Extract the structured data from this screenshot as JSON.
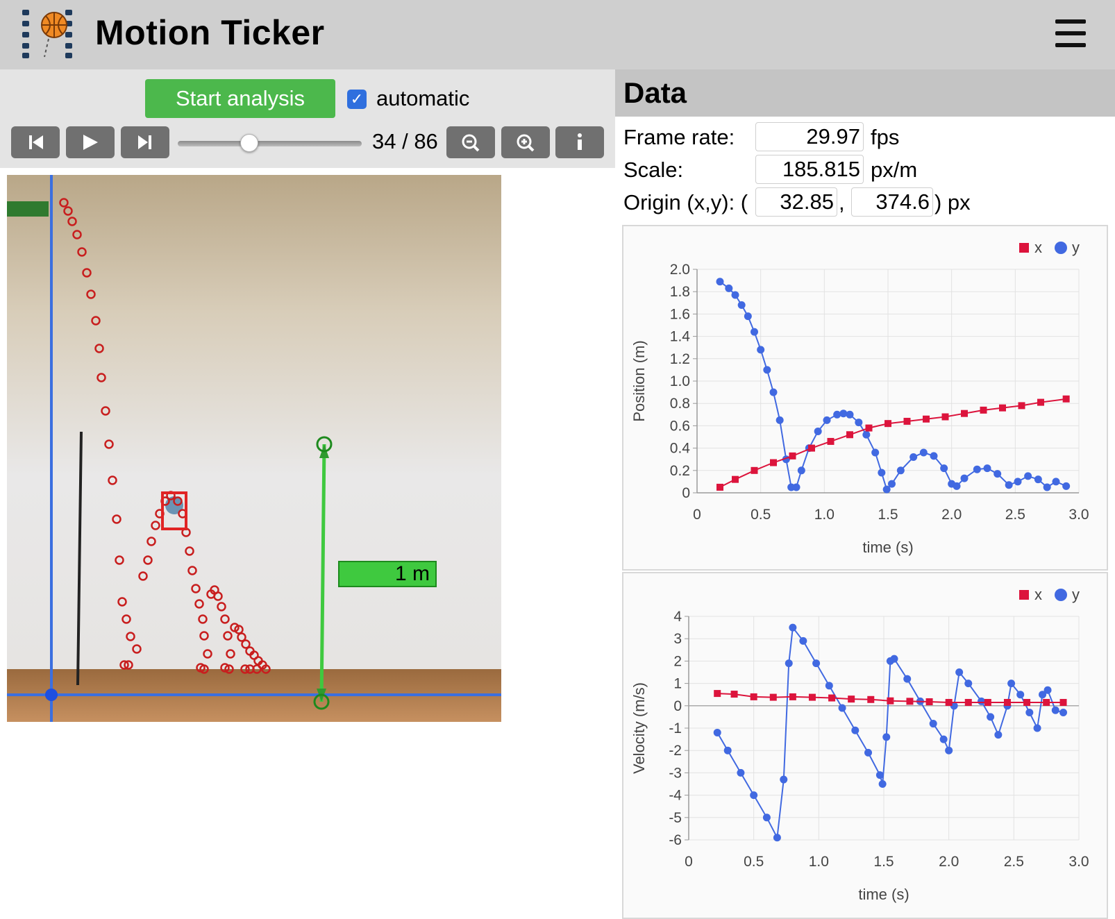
{
  "header": {
    "title": "Motion Ticker",
    "logo_icon": "basketball-filmstrip-icon",
    "menu_icon": "hamburger-menu-icon"
  },
  "controls": {
    "start_label": "Start analysis",
    "auto_label": "automatic",
    "auto_checked": true,
    "frame_current": 34,
    "frame_total": 86,
    "frame_text": "34 / 86",
    "slider_fraction": 0.39,
    "buttons": [
      "skip-back-icon",
      "play-icon",
      "skip-forward-icon",
      "zoom-out-icon",
      "zoom-in-icon",
      "info-icon"
    ]
  },
  "video": {
    "scale_label": "1 m"
  },
  "data": {
    "title": "Data",
    "frame_rate_label": "Frame rate:",
    "frame_rate": "29.97",
    "frame_rate_unit": "fps",
    "scale_label": "Scale:",
    "scale": "185.815",
    "scale_unit": "px/m",
    "origin_label": "Origin (x,y): (",
    "origin_x": "32.85",
    "origin_comma": ",",
    "origin_y": "374.6",
    "origin_unit": ") px"
  },
  "colors": {
    "x_series": "#dc143c",
    "y_series": "#4169e1",
    "start_button": "#4cb84c",
    "scale_bar": "#3fc93f"
  },
  "chart_data": [
    {
      "type": "scatter",
      "xlabel": "time (s)",
      "ylabel": "Position (m)",
      "xlim": [
        0,
        3.0
      ],
      "ylim": [
        0,
        2.0
      ],
      "xticks": [
        "0",
        "0.5",
        "1.0",
        "1.5",
        "2.0",
        "2.5",
        "3.0"
      ],
      "yticks": [
        "0",
        "0.2",
        "0.4",
        "0.6",
        "0.8",
        "1.0",
        "1.2",
        "1.4",
        "1.6",
        "1.8",
        "2.0"
      ],
      "legend": [
        "x",
        "y"
      ],
      "legend_position": "top-right",
      "grid": true,
      "series": [
        {
          "name": "x",
          "marker": "square",
          "points": [
            [
              0.18,
              0.05
            ],
            [
              0.3,
              0.12
            ],
            [
              0.45,
              0.2
            ],
            [
              0.6,
              0.27
            ],
            [
              0.75,
              0.33
            ],
            [
              0.9,
              0.4
            ],
            [
              1.05,
              0.46
            ],
            [
              1.2,
              0.52
            ],
            [
              1.35,
              0.58
            ],
            [
              1.5,
              0.62
            ],
            [
              1.65,
              0.64
            ],
            [
              1.8,
              0.66
            ],
            [
              1.95,
              0.68
            ],
            [
              2.1,
              0.71
            ],
            [
              2.25,
              0.74
            ],
            [
              2.4,
              0.76
            ],
            [
              2.55,
              0.78
            ],
            [
              2.7,
              0.81
            ],
            [
              2.9,
              0.84
            ]
          ]
        },
        {
          "name": "y",
          "marker": "circle",
          "points": [
            [
              0.18,
              1.89
            ],
            [
              0.25,
              1.83
            ],
            [
              0.3,
              1.77
            ],
            [
              0.35,
              1.68
            ],
            [
              0.4,
              1.58
            ],
            [
              0.45,
              1.44
            ],
            [
              0.5,
              1.28
            ],
            [
              0.55,
              1.1
            ],
            [
              0.6,
              0.9
            ],
            [
              0.65,
              0.65
            ],
            [
              0.7,
              0.3
            ],
            [
              0.74,
              0.05
            ],
            [
              0.78,
              0.05
            ],
            [
              0.82,
              0.2
            ],
            [
              0.88,
              0.4
            ],
            [
              0.95,
              0.55
            ],
            [
              1.02,
              0.65
            ],
            [
              1.1,
              0.7
            ],
            [
              1.15,
              0.71
            ],
            [
              1.2,
              0.7
            ],
            [
              1.27,
              0.63
            ],
            [
              1.33,
              0.52
            ],
            [
              1.4,
              0.36
            ],
            [
              1.45,
              0.18
            ],
            [
              1.49,
              0.03
            ],
            [
              1.53,
              0.08
            ],
            [
              1.6,
              0.2
            ],
            [
              1.7,
              0.32
            ],
            [
              1.78,
              0.36
            ],
            [
              1.86,
              0.33
            ],
            [
              1.94,
              0.22
            ],
            [
              2.0,
              0.08
            ],
            [
              2.04,
              0.06
            ],
            [
              2.1,
              0.13
            ],
            [
              2.2,
              0.21
            ],
            [
              2.28,
              0.22
            ],
            [
              2.36,
              0.17
            ],
            [
              2.45,
              0.07
            ],
            [
              2.52,
              0.1
            ],
            [
              2.6,
              0.15
            ],
            [
              2.68,
              0.12
            ],
            [
              2.75,
              0.05
            ],
            [
              2.82,
              0.1
            ],
            [
              2.9,
              0.06
            ]
          ]
        }
      ]
    },
    {
      "type": "scatter",
      "xlabel": "time (s)",
      "ylabel": "Velocity (m/s)",
      "xlim": [
        0,
        3.0
      ],
      "ylim": [
        -6,
        4
      ],
      "xticks": [
        "0",
        "0.5",
        "1.0",
        "1.5",
        "2.0",
        "2.5",
        "3.0"
      ],
      "yticks": [
        "-6",
        "-5",
        "-4",
        "-3",
        "-2",
        "-1",
        "0",
        "1",
        "2",
        "3",
        "4"
      ],
      "legend": [
        "x",
        "y"
      ],
      "legend_position": "top-right",
      "grid": true,
      "series": [
        {
          "name": "x",
          "marker": "square",
          "points": [
            [
              0.22,
              0.55
            ],
            [
              0.35,
              0.52
            ],
            [
              0.5,
              0.4
            ],
            [
              0.65,
              0.38
            ],
            [
              0.8,
              0.4
            ],
            [
              0.95,
              0.38
            ],
            [
              1.1,
              0.35
            ],
            [
              1.25,
              0.3
            ],
            [
              1.4,
              0.28
            ],
            [
              1.55,
              0.22
            ],
            [
              1.7,
              0.2
            ],
            [
              1.85,
              0.18
            ],
            [
              2.0,
              0.15
            ],
            [
              2.15,
              0.15
            ],
            [
              2.3,
              0.15
            ],
            [
              2.45,
              0.15
            ],
            [
              2.6,
              0.15
            ],
            [
              2.75,
              0.15
            ],
            [
              2.88,
              0.15
            ]
          ]
        },
        {
          "name": "y",
          "marker": "circle",
          "points": [
            [
              0.22,
              -1.2
            ],
            [
              0.3,
              -2.0
            ],
            [
              0.4,
              -3.0
            ],
            [
              0.5,
              -4.0
            ],
            [
              0.6,
              -5.0
            ],
            [
              0.68,
              -5.9
            ],
            [
              0.73,
              -3.3
            ],
            [
              0.77,
              1.9
            ],
            [
              0.8,
              3.5
            ],
            [
              0.88,
              2.9
            ],
            [
              0.98,
              1.9
            ],
            [
              1.08,
              0.9
            ],
            [
              1.18,
              -0.1
            ],
            [
              1.28,
              -1.1
            ],
            [
              1.38,
              -2.1
            ],
            [
              1.47,
              -3.1
            ],
            [
              1.49,
              -3.5
            ],
            [
              1.52,
              -1.4
            ],
            [
              1.55,
              2.0
            ],
            [
              1.58,
              2.1
            ],
            [
              1.68,
              1.2
            ],
            [
              1.78,
              0.2
            ],
            [
              1.88,
              -0.8
            ],
            [
              1.96,
              -1.5
            ],
            [
              2.0,
              -2.0
            ],
            [
              2.04,
              0.0
            ],
            [
              2.08,
              1.5
            ],
            [
              2.15,
              1.0
            ],
            [
              2.25,
              0.2
            ],
            [
              2.32,
              -0.5
            ],
            [
              2.38,
              -1.3
            ],
            [
              2.45,
              0.0
            ],
            [
              2.48,
              1.0
            ],
            [
              2.55,
              0.5
            ],
            [
              2.62,
              -0.3
            ],
            [
              2.68,
              -1.0
            ],
            [
              2.72,
              0.5
            ],
            [
              2.76,
              0.7
            ],
            [
              2.82,
              -0.2
            ],
            [
              2.88,
              -0.3
            ]
          ]
        }
      ]
    }
  ]
}
